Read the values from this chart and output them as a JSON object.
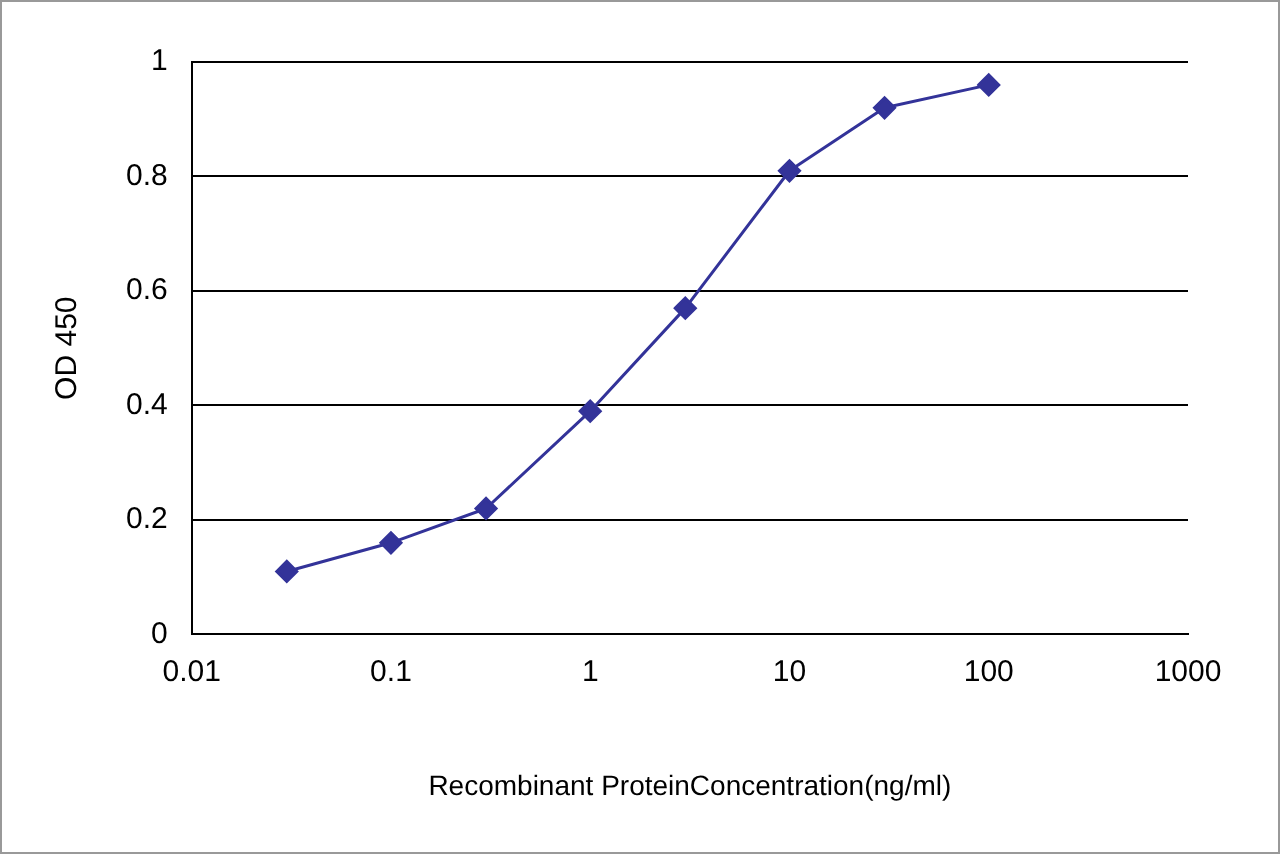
{
  "chart_data": {
    "type": "line",
    "xlabel": "Recombinant ProteinConcentration(ng/ml)",
    "ylabel": "OD 450",
    "x": [
      0.03,
      0.1,
      0.3,
      1,
      3,
      10,
      30,
      100
    ],
    "series": [
      {
        "color": "#333399",
        "values": [
          0.11,
          0.16,
          0.22,
          0.39,
          0.57,
          0.81,
          0.92,
          0.96
        ]
      }
    ],
    "log": "x",
    "xlim": [
      0.01,
      1000
    ],
    "xticks": [
      0.01,
      0.1,
      1,
      10,
      100,
      1000
    ],
    "ylim": [
      0,
      1
    ],
    "yticks": [
      0,
      0.2,
      0.4,
      0.6,
      0.8,
      1
    ],
    "grid": "y",
    "legend": false,
    "marker": "diamond",
    "line_style": "solid"
  }
}
